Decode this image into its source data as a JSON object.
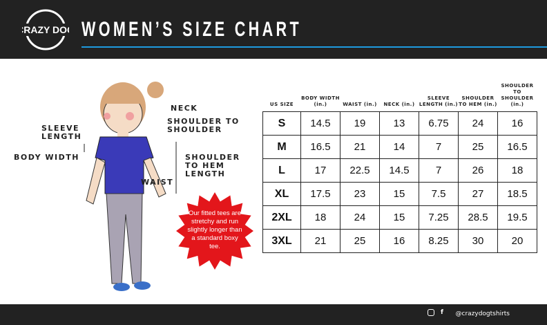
{
  "header": {
    "title": "WOMEN’S SIZE CHART",
    "logo_text": "CRAZY DOG T-Shirts",
    "accent": "#1e9be0"
  },
  "labels": {
    "neck": "NECK",
    "shoulder_to_shoulder": "SHOULDER TO SHOULDER",
    "sleeve_length": "SLEEVE LENGTH",
    "body_width": "BODY WIDTH",
    "shoulder_to_hem": "SHOULDER TO HEM LENGTH",
    "waist": "WAIST"
  },
  "badge": {
    "text": "Our fitted tees are stretchy and run slightly longer than a standard boxy tee.",
    "color": "#e3161b"
  },
  "table": {
    "headers": [
      "US SIZE",
      "BODY WIDTH (in.)",
      "WAIST (in.)",
      "NECK (in.)",
      "SLEEVE LENGTH (in.)",
      "SHOULDER TO HEM (in.)",
      "SHOULDER TO SHOULDER (in.)"
    ],
    "rows": [
      [
        "S",
        "14.5",
        "19",
        "13",
        "6.75",
        "24",
        "16"
      ],
      [
        "M",
        "16.5",
        "21",
        "14",
        "7",
        "25",
        "16.5"
      ],
      [
        "L",
        "17",
        "22.5",
        "14.5",
        "7",
        "26",
        "18"
      ],
      [
        "XL",
        "17.5",
        "23",
        "15",
        "7.5",
        "27",
        "18.5"
      ],
      [
        "2XL",
        "18",
        "24",
        "15",
        "7.25",
        "28.5",
        "19.5"
      ],
      [
        "3XL",
        "21",
        "25",
        "16",
        "8.25",
        "30",
        "20"
      ]
    ]
  },
  "footer": {
    "handle": "@crazydogtshirts",
    "icons": [
      "instagram-icon",
      "facebook-icon"
    ]
  }
}
